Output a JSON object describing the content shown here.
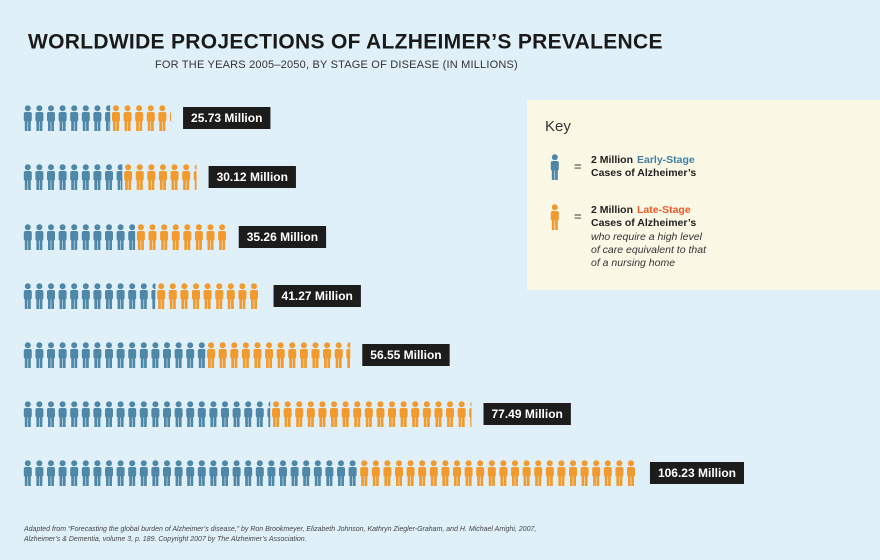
{
  "chart_data": {
    "type": "pictogram",
    "title": "WORLDWIDE PROJECTIONS OF ALZHEIMER’S PREVALENCE",
    "subtitle": "FOR THE YEARS 2005–2050, BY STAGE OF DISEASE (IN MILLIONS)",
    "icon_value": {
      "value": 2,
      "label": "2 Million"
    },
    "series": [
      {
        "name": "Early-Stage",
        "color": "#4f87a8",
        "values": [
          15.2,
          17.3,
          19.5,
          23.0,
          31.6,
          42.8,
          58.0
        ]
      },
      {
        "name": "Late-Stage",
        "color": "#f39a2e",
        "values": [
          10.5,
          12.8,
          15.8,
          18.3,
          25.0,
          34.7,
          48.2
        ]
      }
    ],
    "totals": {
      "values": [
        25.73,
        30.12,
        35.26,
        41.27,
        56.55,
        77.49,
        106.23
      ],
      "value_labels": [
        "25.73 Million",
        "30.12 Million",
        "35.26 Million",
        "41.27 Million",
        "56.55 Million",
        "77.49 Million",
        "106.23 Million"
      ]
    },
    "legend": {
      "title": "Key",
      "equals": "=",
      "suffix": "Cases of Alzheimer’s",
      "late_note": [
        "who require a high level",
        "of care equivalent to that",
        "of a nursing home"
      ]
    },
    "source": [
      "Adapted from “Forecasting the global burden of Alzheimer’s disease,” by Ron Brookmeyer, Elizabeth Johnson, Kathryn Ziegler-Graham, and H. Michael Arrighi, 2007,",
      "Alzheimer’s & Dementia, volume 3, p. 189. Copyright 2007 by The Alzheimer’s Association."
    ]
  }
}
